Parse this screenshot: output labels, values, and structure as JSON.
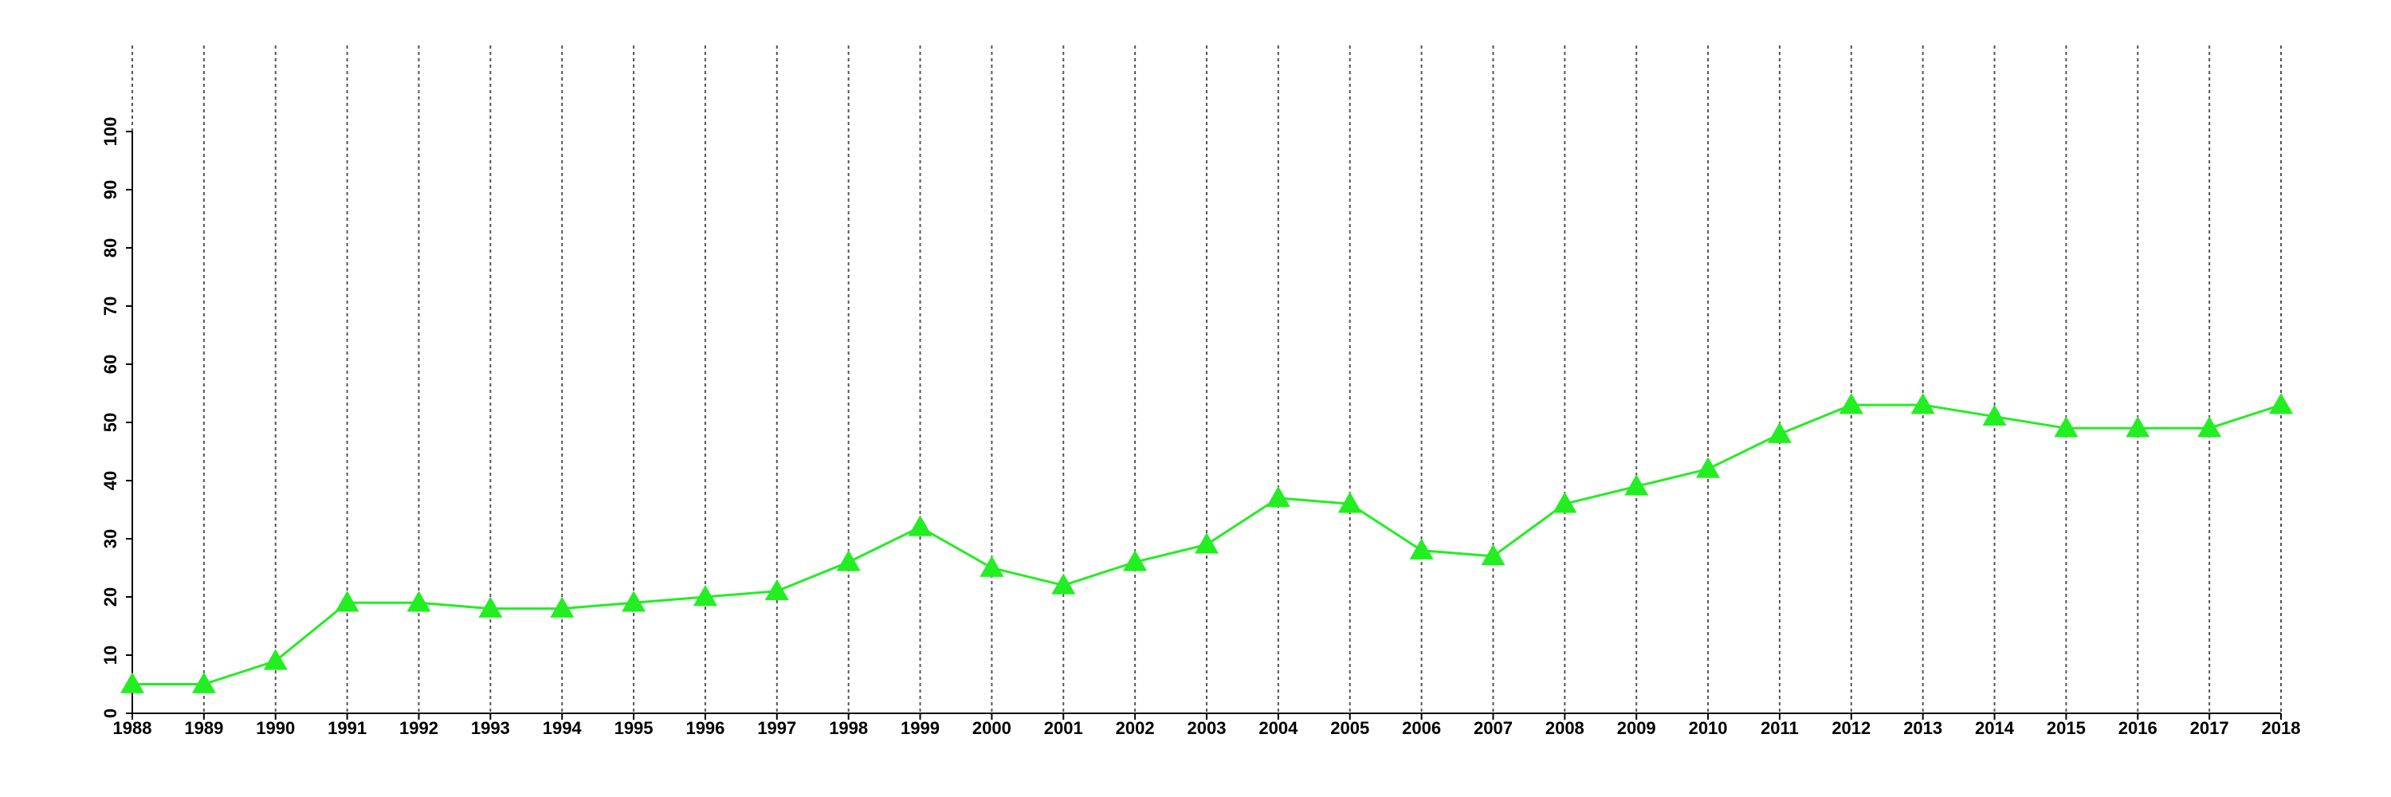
{
  "chart_data": {
    "type": "line",
    "x": [
      1988,
      1989,
      1990,
      1991,
      1992,
      1993,
      1994,
      1995,
      1996,
      1997,
      1998,
      1999,
      2000,
      2001,
      2002,
      2003,
      2004,
      2005,
      2006,
      2007,
      2008,
      2009,
      2010,
      2011,
      2012,
      2013,
      2014,
      2015,
      2016,
      2017,
      2018
    ],
    "values": [
      5,
      5,
      9,
      19,
      19,
      18,
      18,
      19,
      20,
      21,
      26,
      32,
      25,
      22,
      26,
      29,
      37,
      36,
      28,
      27,
      36,
      39,
      42,
      48,
      53,
      53,
      51,
      49,
      49,
      49,
      53
    ],
    "color": "#22ee22",
    "marker": "triangle",
    "xlim": [
      1988,
      2018
    ],
    "xticks": [
      1988,
      1989,
      1990,
      1991,
      1992,
      1993,
      1994,
      1995,
      1996,
      1997,
      1998,
      1999,
      2000,
      2001,
      2002,
      2003,
      2004,
      2005,
      2006,
      2007,
      2008,
      2009,
      2010,
      2011,
      2012,
      2013,
      2014,
      2015,
      2016,
      2017,
      2018
    ],
    "ylim": [
      0,
      100
    ],
    "yticks": [
      0,
      10,
      20,
      30,
      40,
      50,
      60,
      70,
      80,
      90,
      100
    ],
    "grid": "x"
  }
}
